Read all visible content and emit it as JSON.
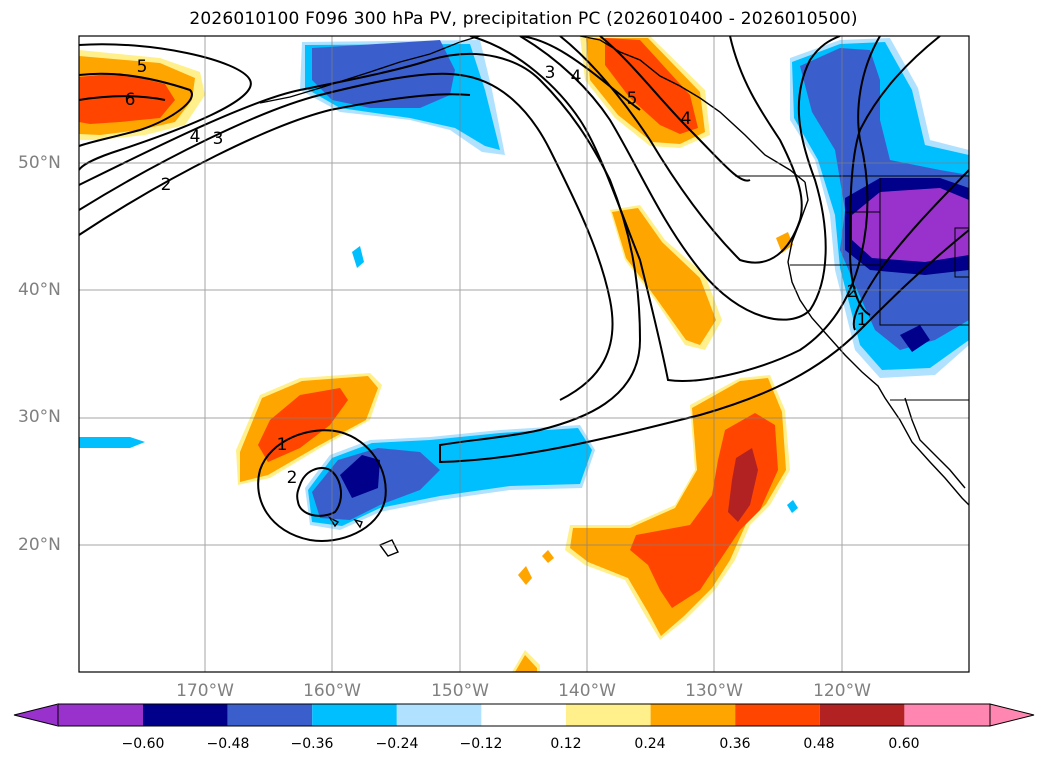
{
  "title": "2026010100 F096 300 hPa PV, precipitation PC (2026010400 - 2026010500)",
  "lat_labels": [
    "50°N",
    "40°N",
    "30°N",
    "20°N"
  ],
  "lon_labels": [
    "170°W",
    "160°W",
    "150°W",
    "140°W",
    "130°W",
    "120°W"
  ],
  "contour_labels": [
    "5",
    "6",
    "4",
    "3",
    "2",
    "3",
    "4",
    "5",
    "4",
    "2",
    "1",
    "1",
    "2"
  ],
  "colorbar": {
    "ticks": [
      "−0.60",
      "−0.48",
      "−0.36",
      "−0.24",
      "−0.12",
      "0.12",
      "0.24",
      "0.36",
      "0.48",
      "0.60"
    ],
    "colors": [
      "#9932cc",
      "#00008b",
      "#3a5fcd",
      "#00bfff",
      "#b0e2ff",
      "#ffffff",
      "#fff08c",
      "#ffa500",
      "#ff4500",
      "#b22222",
      "#ff86b0"
    ]
  },
  "palette": {
    "purple": "#9932cc",
    "navy": "#00008b",
    "blue": "#3a5fcd",
    "cyan": "#00bfff",
    "lightblue": "#b0e2ff",
    "yellow": "#fff08c",
    "orange": "#ffa500",
    "redorange": "#ff4500",
    "darkred": "#b22222"
  }
}
